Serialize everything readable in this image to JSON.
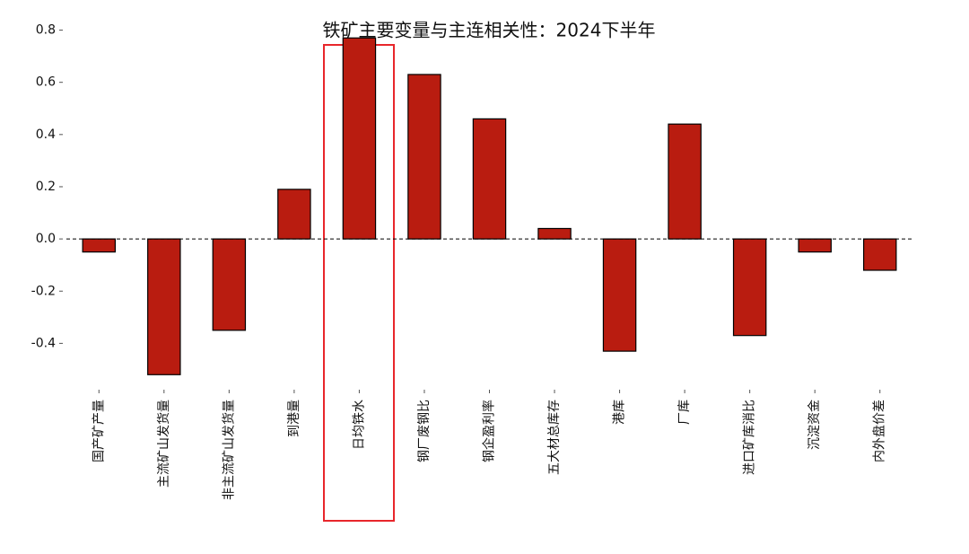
{
  "chart_data": {
    "type": "bar",
    "title": "铁矿主要变量与主连相关性：2024下半年",
    "categories": [
      "国产矿产量",
      "主流矿山发货量",
      "非主流矿山发货量",
      "到港量",
      "日均铁水",
      "钢厂废钢比",
      "钢企盈利率",
      "五大材总库存",
      "港库",
      "厂库",
      "进口矿库消比",
      "沉淀资金",
      "内外盘价差"
    ],
    "values": [
      -0.05,
      -0.52,
      -0.35,
      0.19,
      0.77,
      0.63,
      0.46,
      0.04,
      -0.43,
      0.44,
      -0.37,
      -0.05,
      -0.12
    ],
    "color": "#b91c10",
    "ylim": [
      -0.55,
      0.85
    ],
    "yticks": [
      -0.4,
      -0.2,
      {
        "value": 0,
        "label": "0.0"
      },
      0.2,
      0.4,
      0.6,
      0.8
    ]
  }
}
